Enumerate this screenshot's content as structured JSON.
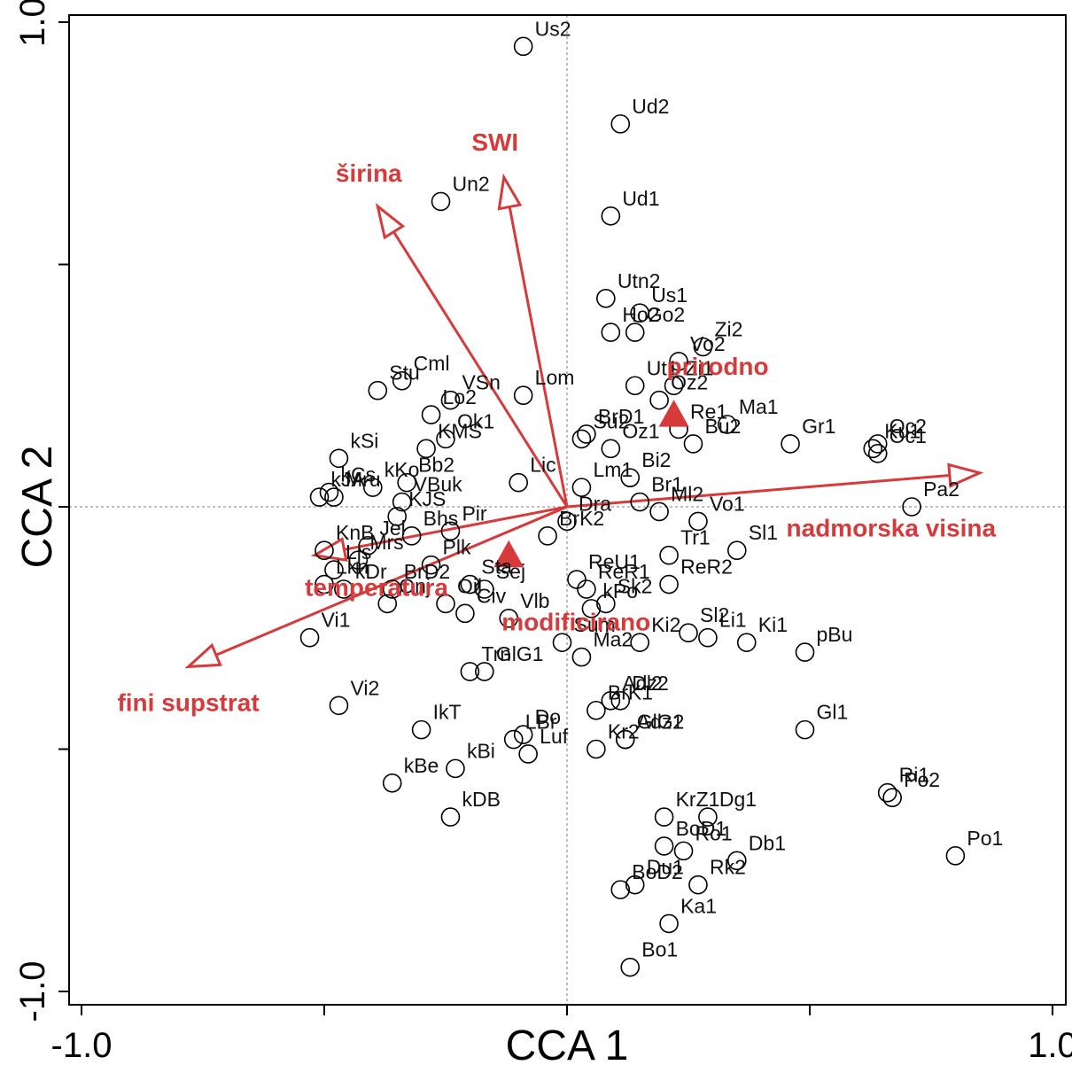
{
  "chart_data": {
    "type": "scatter",
    "title": "",
    "xlabel": "CCA 1",
    "ylabel": "CCA 2",
    "xlim": [
      -1.0,
      1.0
    ],
    "ylim": [
      -1.0,
      1.0
    ],
    "grid": false,
    "zero_lines": true,
    "x_tick_labels": [
      "-1.0",
      "1.0"
    ],
    "y_tick_labels": [
      "-1.0",
      "1.0"
    ],
    "x_ticks": [
      -1.0,
      -0.5,
      0.0,
      0.5,
      1.0
    ],
    "y_ticks": [
      -1.0,
      -0.5,
      0.0,
      0.5,
      1.0
    ],
    "marker_color": "#000000",
    "vector_color": "#d63a3a",
    "sites": [
      {
        "label": "Us2",
        "x": -0.09,
        "y": 0.95
      },
      {
        "label": "Ud2",
        "x": 0.11,
        "y": 0.79
      },
      {
        "label": "Un2",
        "x": -0.26,
        "y": 0.63
      },
      {
        "label": "Ud1",
        "x": 0.09,
        "y": 0.6
      },
      {
        "label": "Utn2",
        "x": 0.08,
        "y": 0.43
      },
      {
        "label": "Us1",
        "x": 0.15,
        "y": 0.4
      },
      {
        "label": "Zi2",
        "x": 0.28,
        "y": 0.33
      },
      {
        "label": "Ho2",
        "x": 0.09,
        "y": 0.36
      },
      {
        "label": "Go2",
        "x": 0.14,
        "y": 0.36
      },
      {
        "label": "Vo2",
        "x": 0.23,
        "y": 0.3
      },
      {
        "label": "Zi1",
        "x": 0.22,
        "y": 0.25
      },
      {
        "label": "Oz2",
        "x": 0.19,
        "y": 0.22
      },
      {
        "label": "Ma1",
        "x": 0.33,
        "y": 0.17
      },
      {
        "label": "Ut1",
        "x": 0.14,
        "y": 0.25
      },
      {
        "label": "BrD1",
        "x": 0.04,
        "y": 0.15
      },
      {
        "label": "Re1",
        "x": 0.23,
        "y": 0.16
      },
      {
        "label": "Su2",
        "x": 0.03,
        "y": 0.14
      },
      {
        "label": "Oz1",
        "x": 0.09,
        "y": 0.12
      },
      {
        "label": "Bu2",
        "x": 0.26,
        "y": 0.13
      },
      {
        "label": "Gr1",
        "x": 0.46,
        "y": 0.13
      },
      {
        "label": "Ku1",
        "x": 0.63,
        "y": 0.12
      },
      {
        "label": "Oc2",
        "x": 0.64,
        "y": 0.13
      },
      {
        "label": "Oc1",
        "x": 0.64,
        "y": 0.11
      },
      {
        "label": "Stu",
        "x": -0.39,
        "y": 0.24
      },
      {
        "label": "Cml",
        "x": -0.34,
        "y": 0.26
      },
      {
        "label": "VSn",
        "x": -0.24,
        "y": 0.22
      },
      {
        "label": "Lo2",
        "x": -0.28,
        "y": 0.19
      },
      {
        "label": "Ok1",
        "x": -0.25,
        "y": 0.14
      },
      {
        "label": "Lom",
        "x": -0.09,
        "y": 0.23
      },
      {
        "label": "kSi",
        "x": -0.47,
        "y": 0.1
      },
      {
        "label": "kKo",
        "x": -0.4,
        "y": 0.04
      },
      {
        "label": "KMS",
        "x": -0.29,
        "y": 0.12
      },
      {
        "label": "Bb2",
        "x": -0.33,
        "y": 0.05
      },
      {
        "label": "Lm1",
        "x": 0.03,
        "y": 0.04
      },
      {
        "label": "Bi2",
        "x": 0.13,
        "y": 0.06
      },
      {
        "label": "kCs",
        "x": -0.49,
        "y": 0.03
      },
      {
        "label": "Mru",
        "x": -0.48,
        "y": 0.02
      },
      {
        "label": "VBuk",
        "x": -0.34,
        "y": 0.01
      },
      {
        "label": "Lic",
        "x": -0.1,
        "y": 0.05
      },
      {
        "label": "kJA",
        "x": -0.51,
        "y": 0.02
      },
      {
        "label": "Dra",
        "x": 0.0,
        "y": -0.03
      },
      {
        "label": "Br1",
        "x": 0.15,
        "y": 0.01
      },
      {
        "label": "Ml2",
        "x": 0.19,
        "y": -0.01
      },
      {
        "label": "Vo1",
        "x": 0.27,
        "y": -0.03
      },
      {
        "label": "Pa2",
        "x": 0.71,
        "y": 0.0
      },
      {
        "label": "Sl1",
        "x": 0.35,
        "y": -0.09
      },
      {
        "label": "Tr1",
        "x": 0.21,
        "y": -0.1
      },
      {
        "label": "Pir",
        "x": -0.24,
        "y": -0.05
      },
      {
        "label": "KJS",
        "x": -0.35,
        "y": -0.02
      },
      {
        "label": "Bhs",
        "x": -0.32,
        "y": -0.06
      },
      {
        "label": "Jel",
        "x": -0.41,
        "y": -0.08
      },
      {
        "label": "KnB",
        "x": -0.5,
        "y": -0.09
      },
      {
        "label": "Plk",
        "x": -0.28,
        "y": -0.12
      },
      {
        "label": "BrK2",
        "x": -0.04,
        "y": -0.06
      },
      {
        "label": "Mrs",
        "x": -0.43,
        "y": -0.11
      },
      {
        "label": "Ljs",
        "x": -0.48,
        "y": -0.13
      },
      {
        "label": "ReU1",
        "x": 0.02,
        "y": -0.15
      },
      {
        "label": "ReR1",
        "x": 0.04,
        "y": -0.17
      },
      {
        "label": "ReR2",
        "x": 0.21,
        "y": -0.16
      },
      {
        "label": "BrD2",
        "x": -0.36,
        "y": -0.17
      },
      {
        "label": "Sta",
        "x": -0.2,
        "y": -0.16
      },
      {
        "label": "Sej",
        "x": -0.17,
        "y": -0.17
      },
      {
        "label": "Sk2",
        "x": 0.08,
        "y": -0.2
      },
      {
        "label": "Lkn",
        "x": -0.5,
        "y": -0.16
      },
      {
        "label": "kDr",
        "x": -0.46,
        "y": -0.17
      },
      {
        "label": "Onj",
        "x": -0.37,
        "y": -0.2
      },
      {
        "label": "Oil",
        "x": -0.25,
        "y": -0.2
      },
      {
        "label": "Civ",
        "x": -0.21,
        "y": -0.22
      },
      {
        "label": "Vlb",
        "x": -0.12,
        "y": -0.23
      },
      {
        "label": "kPo",
        "x": 0.05,
        "y": -0.21
      },
      {
        "label": "Sl2",
        "x": 0.25,
        "y": -0.26
      },
      {
        "label": "Sum",
        "x": -0.01,
        "y": -0.28
      },
      {
        "label": "Ki2",
        "x": 0.15,
        "y": -0.28
      },
      {
        "label": "Li1",
        "x": 0.29,
        "y": -0.27
      },
      {
        "label": "Ki1",
        "x": 0.37,
        "y": -0.28
      },
      {
        "label": "pBu",
        "x": 0.49,
        "y": -0.3
      },
      {
        "label": "Vi1",
        "x": -0.53,
        "y": -0.27
      },
      {
        "label": "Trn",
        "x": -0.2,
        "y": -0.34
      },
      {
        "label": "GlG1",
        "x": -0.17,
        "y": -0.34
      },
      {
        "label": "Ma2",
        "x": 0.03,
        "y": -0.31
      },
      {
        "label": "Adz2",
        "x": 0.09,
        "y": -0.4
      },
      {
        "label": "BrK1",
        "x": 0.06,
        "y": -0.42
      },
      {
        "label": "Dl2",
        "x": 0.11,
        "y": -0.4
      },
      {
        "label": "GlG2",
        "x": 0.12,
        "y": -0.48
      },
      {
        "label": "Gl1",
        "x": 0.49,
        "y": -0.46
      },
      {
        "label": "Vi2",
        "x": -0.47,
        "y": -0.41
      },
      {
        "label": "IkT",
        "x": -0.3,
        "y": -0.46
      },
      {
        "label": "LBr",
        "x": -0.11,
        "y": -0.48
      },
      {
        "label": "Do",
        "x": -0.09,
        "y": -0.47
      },
      {
        "label": "Luf",
        "x": -0.08,
        "y": -0.51
      },
      {
        "label": "Kr2",
        "x": 0.06,
        "y": -0.5
      },
      {
        "label": "Adz1",
        "x": 0.12,
        "y": -0.48
      },
      {
        "label": "kBi",
        "x": -0.23,
        "y": -0.54
      },
      {
        "label": "kBe",
        "x": -0.36,
        "y": -0.57
      },
      {
        "label": "kDB",
        "x": -0.24,
        "y": -0.64
      },
      {
        "label": "Ri1",
        "x": 0.66,
        "y": -0.59
      },
      {
        "label": "Po2",
        "x": 0.67,
        "y": -0.6
      },
      {
        "label": "KrZ1",
        "x": 0.2,
        "y": -0.64
      },
      {
        "label": "Dg1",
        "x": 0.29,
        "y": -0.64
      },
      {
        "label": "BoD1",
        "x": 0.2,
        "y": -0.7
      },
      {
        "label": "Ro1",
        "x": 0.24,
        "y": -0.71
      },
      {
        "label": "Db1",
        "x": 0.35,
        "y": -0.73
      },
      {
        "label": "Po1",
        "x": 0.8,
        "y": -0.72
      },
      {
        "label": "Du1",
        "x": 0.14,
        "y": -0.78
      },
      {
        "label": "BoD2",
        "x": 0.11,
        "y": -0.79
      },
      {
        "label": "Rk2",
        "x": 0.27,
        "y": -0.78
      },
      {
        "label": "Ka1",
        "x": 0.21,
        "y": -0.86
      },
      {
        "label": "Bo1",
        "x": 0.13,
        "y": -0.95
      }
    ],
    "env_vectors": [
      {
        "label": "širina",
        "x": -0.39,
        "y": 0.62
      },
      {
        "label": "SWI",
        "x": -0.13,
        "y": 0.68
      },
      {
        "label": "nadmorska visina",
        "x": 0.85,
        "y": 0.07
      },
      {
        "label": "temperatura",
        "x": -0.52,
        "y": -0.1
      },
      {
        "label": "fini supstrat",
        "x": -0.78,
        "y": -0.33
      }
    ],
    "factor_centroids": [
      {
        "label": "prirodno",
        "x": 0.22,
        "y": 0.19
      },
      {
        "label": "modificirano",
        "x": -0.12,
        "y": -0.1
      }
    ]
  }
}
